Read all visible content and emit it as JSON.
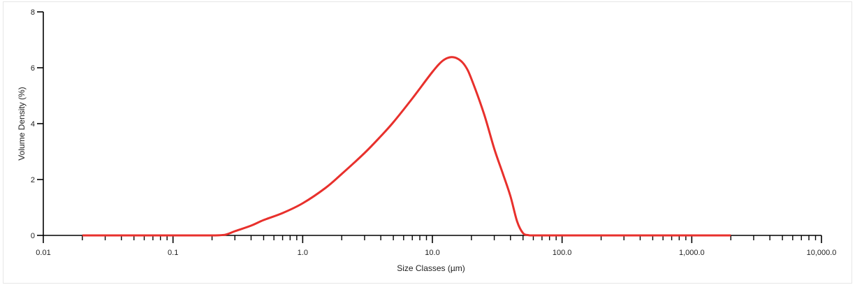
{
  "chart_data": {
    "type": "line",
    "title": "",
    "xlabel": "Size Classes (µm)",
    "ylabel": "Volume Density (%)",
    "xscale": "log",
    "xlim": [
      0.01,
      10000
    ],
    "ylim": [
      0,
      8
    ],
    "x_ticks": [
      0.01,
      0.1,
      1,
      10,
      100,
      1000,
      10000
    ],
    "x_tick_labels": [
      "0.01",
      "0.1",
      "1.0",
      "10.0",
      "100.0",
      "1,000.0",
      "10,000.0"
    ],
    "y_ticks": [
      0,
      2,
      4,
      6,
      8
    ],
    "y_tick_labels": [
      "0",
      "2",
      "4",
      "6",
      "8"
    ],
    "grid": false,
    "legend": "none",
    "series": [
      {
        "color": "#e8302c",
        "x": [
          0.02,
          0.05,
          0.1,
          0.2,
          0.25,
          0.3,
          0.4,
          0.5,
          0.7,
          1.0,
          1.5,
          2.0,
          3.0,
          4.0,
          5.0,
          7.0,
          10.0,
          12.0,
          14.0,
          16.0,
          18.0,
          20.0,
          25.0,
          30.0,
          35.0,
          40.0,
          45.0,
          50.0,
          55.0,
          60.0,
          100.0,
          500.0,
          1000.0,
          2000.0
        ],
        "y": [
          0,
          0,
          0,
          0,
          0.02,
          0.15,
          0.35,
          0.55,
          0.8,
          1.15,
          1.7,
          2.2,
          2.95,
          3.55,
          4.05,
          4.9,
          5.85,
          6.25,
          6.38,
          6.3,
          6.05,
          5.6,
          4.35,
          3.1,
          2.2,
          1.4,
          0.5,
          0.08,
          0.01,
          0,
          0,
          0,
          0,
          0
        ]
      }
    ]
  }
}
